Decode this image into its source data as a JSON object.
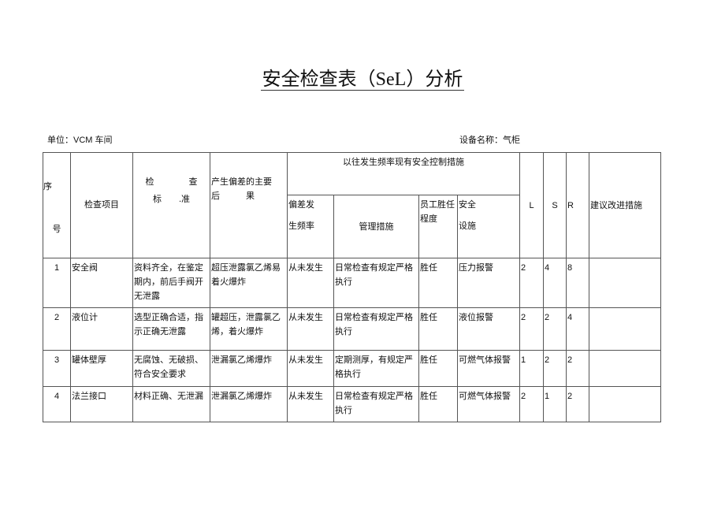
{
  "title": "安全检查表（SeL）分析",
  "unit_label": "单位：VCM 车间",
  "equipment_label": "设备名称：气柜",
  "headers": {
    "seq_top": "序",
    "seq_bottom": "号",
    "item": "检查项目",
    "standard_line1": "检　　　　查",
    "standard_line2": "标　　.准",
    "consequence_line1": "产生偏差的主要",
    "consequence_line2": "后　　　果",
    "controls_group": "以往发生频率现有安全控制措施",
    "frequency_line1": "偏差发",
    "frequency_line2": "生频率",
    "management": "管理措施",
    "competence": "员工胜任程度",
    "facility_line1": "安全",
    "facility_line2": "设施",
    "L": "L",
    "S": "S",
    "R": "R",
    "suggestions": "建议改进措施"
  },
  "rows": [
    {
      "no": "1",
      "item": "安全阀",
      "standard": "资料齐全，在鉴定期内，前后手阀开无泄露",
      "consequence": "超压泄露氯乙烯易着火爆炸",
      "frequency": "从未发生",
      "management": "日常检查有规定严格执行",
      "competence": "胜任",
      "facility": "压力报警",
      "L": "2",
      "S": "4",
      "R": "8",
      "suggestion": ""
    },
    {
      "no": "2",
      "item": "液位计",
      "standard": "选型正确合适，指示正确无泄露",
      "consequence": "罐超压，泄露氯乙烯，着火爆炸",
      "frequency": "从未发生",
      "management": "日常检查有规定严格执行",
      "competence": "胜任",
      "facility": "液位报警",
      "L": "2",
      "S": "2",
      "R": "4",
      "suggestion": ""
    },
    {
      "no": "3",
      "item": "罐体壁厚",
      "standard": "无腐蚀、无破损、符合安全要求",
      "consequence": "泄漏氯乙烯爆炸",
      "frequency": "从未发生",
      "management": "定期测厚，有规定严格执行",
      "competence": "胜任",
      "facility": "可燃气体报警",
      "L": "1",
      "S": "2",
      "R": "2",
      "suggestion": ""
    },
    {
      "no": "4",
      "item": "法兰接口",
      "standard": "材料正确、无泄漏",
      "consequence": "泄漏氯乙烯爆炸",
      "frequency": "从未发生",
      "management": "日常检查有规定严格执行",
      "competence": "胜任",
      "facility": "可燃气体报警",
      "L": "2",
      "S": "1",
      "R": "2",
      "suggestion": ""
    }
  ]
}
